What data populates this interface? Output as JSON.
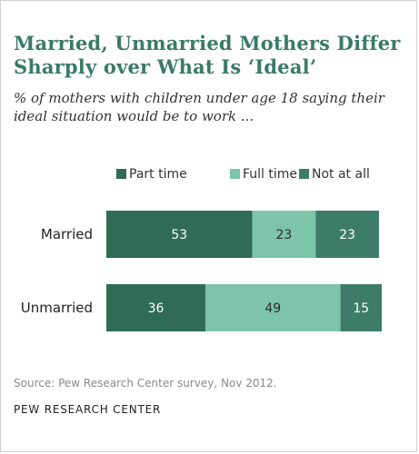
{
  "header": {
    "title_line1": "Married, Unmarried Mothers Differ",
    "title_line2": "Sharply over What Is ‘Ideal’",
    "subtitle_line1": "% of mothers with children under age 18 saying their",
    "subtitle_line2": "ideal situation would be to work ..."
  },
  "chart_data": {
    "type": "bar",
    "orientation": "horizontal",
    "stacked": true,
    "categories": [
      "Married",
      "Unmarried"
    ],
    "series": [
      {
        "name": "Part time",
        "values": [
          53,
          36
        ],
        "color": "#2f6b55"
      },
      {
        "name": "Full time",
        "values": [
          23,
          49
        ],
        "color": "#7cc4aa"
      },
      {
        "name": "Not at all",
        "values": [
          23,
          15
        ],
        "color": "#3d7c69"
      }
    ],
    "legend": "top",
    "grid": false,
    "value_labels": true
  },
  "footer": {
    "source": "Source: Pew Research Center survey, Nov 2012.",
    "brand": "PEW RESEARCH CENTER"
  }
}
